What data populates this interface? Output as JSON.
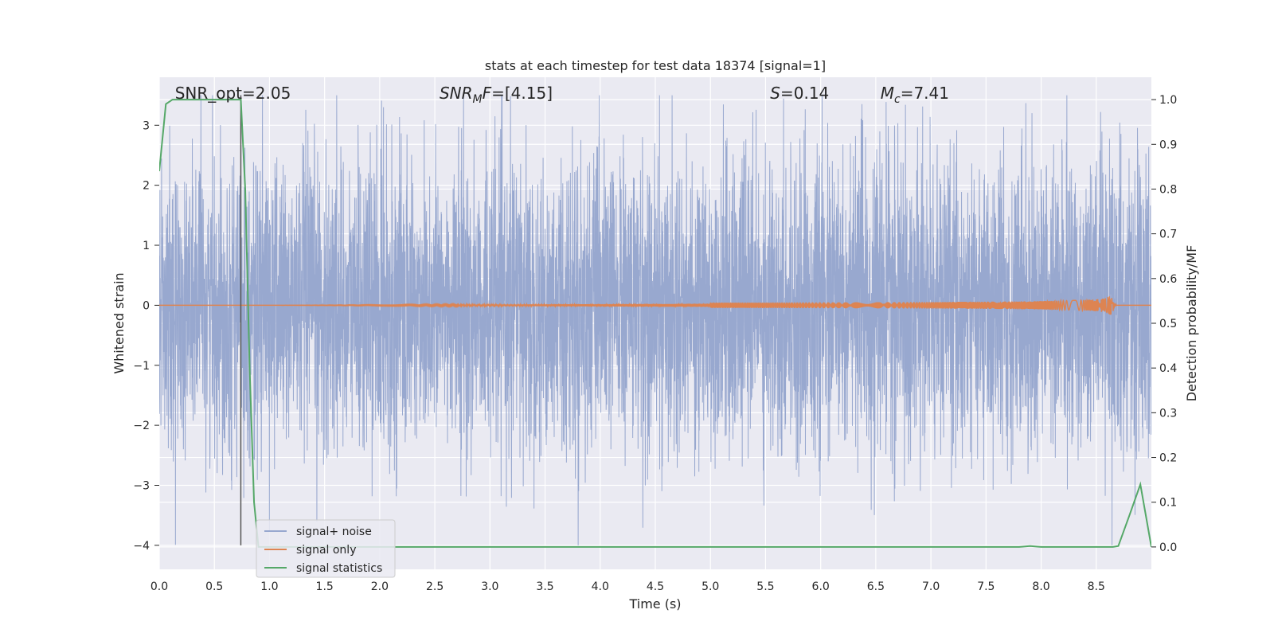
{
  "chart_data": {
    "type": "line",
    "title": "stats at each timestep for test data 18374 [signal=1]",
    "xlabel": "Time (s)",
    "ylabel": "Whitened strain",
    "y2label": "Detection probability/MF",
    "xlim": [
      0,
      9.0
    ],
    "ylim": [
      -4.4,
      3.8
    ],
    "y2lim": [
      -0.05,
      1.05
    ],
    "x_ticks": [
      0.0,
      0.5,
      1.0,
      1.5,
      2.0,
      2.5,
      3.0,
      3.5,
      4.0,
      4.5,
      5.0,
      5.5,
      6.0,
      6.5,
      7.0,
      7.5,
      8.0,
      8.5
    ],
    "x_tick_labels": [
      "0.0",
      "0.5",
      "1.0",
      "1.5",
      "2.0",
      "2.5",
      "3.0",
      "3.5",
      "4.0",
      "4.5",
      "5.0",
      "5.5",
      "6.0",
      "6.5",
      "7.0",
      "7.5",
      "8.0",
      "8.5"
    ],
    "y_ticks": [
      -4,
      -3,
      -2,
      -1,
      0,
      1,
      2,
      3
    ],
    "y_tick_labels": [
      "−4",
      "−3",
      "−2",
      "−1",
      "0",
      "1",
      "2",
      "3"
    ],
    "y2_ticks": [
      0.0,
      0.1,
      0.2,
      0.3,
      0.4,
      0.5,
      0.6,
      0.7,
      0.8,
      0.9,
      1.0
    ],
    "y2_tick_labels": [
      "0.0",
      "0.1",
      "0.2",
      "0.3",
      "0.4",
      "0.5",
      "0.6",
      "0.7",
      "0.8",
      "0.9",
      "1.0"
    ],
    "grid": true,
    "legend_placement": "lower-left",
    "annotations": [
      {
        "label": "SNR_opt=2.05",
        "x": 0.2
      },
      {
        "label": "SNR_MF=[4.15]",
        "x": 2.6,
        "base": "SNR",
        "sub": "M",
        "suffix": "F=[4.15]",
        "italic": true
      },
      {
        "label": "S=0.14",
        "x": 5.6,
        "base": "S",
        "sub": "",
        "suffix": "=0.14",
        "italic": true
      },
      {
        "label": "M_c=7.41",
        "x": 6.6,
        "base": "M",
        "sub": "c",
        "suffix": "=7.41",
        "italic": true
      }
    ],
    "marker_line": {
      "x": 0.74,
      "y_from": -4.0,
      "y_to": 3.5,
      "color": "#555555"
    },
    "series": [
      {
        "name": "signal+ noise",
        "color": "#98a8cf",
        "kind": "noise",
        "typical_amplitude": 1.2,
        "max_value": 3.5,
        "min_value": -4.0
      },
      {
        "name": "signal only",
        "color": "#dd8452",
        "kind": "chirp",
        "merger_time": 8.65,
        "peak_amplitude": 0.25
      },
      {
        "name": "signal statistics",
        "color": "#55a868",
        "axis": "y2",
        "x": [
          0.0,
          0.06,
          0.12,
          0.2,
          0.3,
          0.4,
          0.5,
          0.6,
          0.7,
          0.74,
          0.78,
          0.82,
          0.86,
          0.9,
          1.0,
          2.0,
          3.0,
          4.0,
          5.0,
          6.0,
          7.0,
          7.6,
          7.8,
          7.9,
          8.0,
          8.5,
          8.65,
          8.7,
          8.8,
          8.9,
          9.0
        ],
        "y": [
          0.84,
          0.99,
          1.0,
          1.0,
          1.0,
          1.0,
          1.0,
          1.0,
          1.0,
          1.0,
          0.8,
          0.4,
          0.1,
          0.0,
          0.0,
          0.0,
          0.0,
          0.0,
          0.0,
          0.0,
          0.0,
          0.0,
          0.0,
          0.002,
          0.0,
          0.0,
          0.0,
          0.002,
          0.07,
          0.14,
          0.0
        ]
      }
    ]
  }
}
